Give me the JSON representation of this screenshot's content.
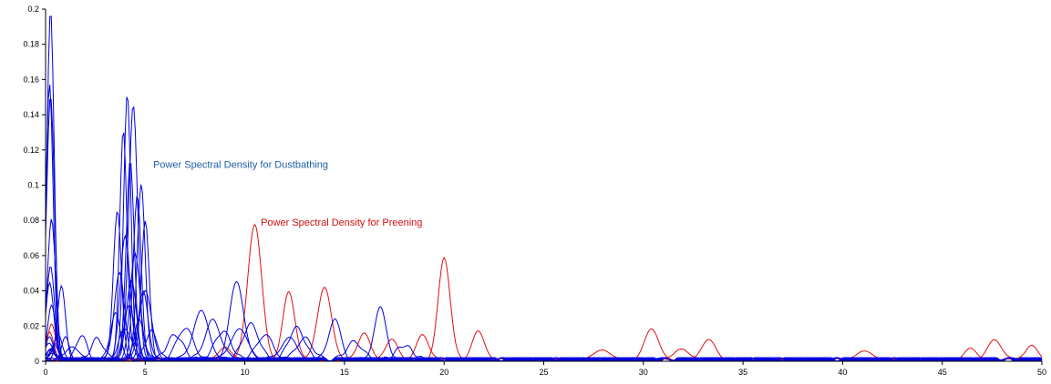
{
  "chart_data": {
    "type": "line",
    "title": "",
    "xlabel": "",
    "ylabel": "",
    "xlim": [
      0,
      50
    ],
    "ylim": [
      0,
      0.2
    ],
    "xticks": [
      0,
      5,
      10,
      15,
      20,
      25,
      30,
      35,
      40,
      45,
      50
    ],
    "xtick_labels": [
      "0",
      "5",
      "10",
      "15",
      "20",
      "25",
      "30",
      "35",
      "40",
      "45",
      "50"
    ],
    "yticks": [
      0,
      0.02,
      0.04,
      0.06,
      0.08,
      0.1,
      0.12,
      0.14,
      0.16,
      0.18,
      0.2
    ],
    "ytick_labels": [
      "0",
      "0.02",
      "0.04",
      "0.06",
      "0.08",
      "0.1",
      "0.12",
      "0.14",
      "0.16",
      "0.18",
      "0.2"
    ],
    "grid": false,
    "legend": "none",
    "annotations": [
      {
        "text": "Power Spectral Density for Dustbathing",
        "x": 5.4,
        "y": 0.112,
        "color": "#1f5fa8"
      },
      {
        "text": "Power Spectral Density for Preening",
        "x": 10.8,
        "y": 0.079,
        "color": "#d01010"
      }
    ],
    "series": [
      {
        "group": "dustbathing",
        "color": "#0000e0",
        "peaks": [
          [
            0.25,
            0.199,
            0.18
          ],
          [
            4.4,
            0.145,
            0.22
          ],
          [
            9.7,
            0.018,
            0.4
          ]
        ]
      },
      {
        "group": "dustbathing",
        "color": "#0000e0",
        "peaks": [
          [
            0.2,
            0.156,
            0.18
          ],
          [
            4.1,
            0.152,
            0.18
          ],
          [
            1.3,
            0.008,
            0.3
          ]
        ]
      },
      {
        "group": "dustbathing",
        "color": "#0000e0",
        "peaks": [
          [
            0.25,
            0.149,
            0.2
          ],
          [
            3.9,
            0.13,
            0.18
          ],
          [
            5.0,
            0.04,
            0.3
          ]
        ]
      },
      {
        "group": "dustbathing",
        "color": "#0000e0",
        "peaks": [
          [
            0.3,
            0.08,
            0.2
          ],
          [
            4.25,
            0.114,
            0.2
          ],
          [
            12.2,
            0.012,
            0.4
          ]
        ]
      },
      {
        "group": "dustbathing",
        "color": "#0000e0",
        "peaks": [
          [
            0.25,
            0.054,
            0.2
          ],
          [
            4.8,
            0.1,
            0.2
          ],
          [
            7.8,
            0.027,
            0.4
          ]
        ]
      },
      {
        "group": "dustbathing",
        "color": "#0000e0",
        "peaks": [
          [
            0.8,
            0.041,
            0.2
          ],
          [
            3.6,
            0.085,
            0.2
          ],
          [
            9.6,
            0.044,
            0.35
          ]
        ]
      },
      {
        "group": "dustbathing",
        "color": "#0000e0",
        "peaks": [
          [
            0.2,
            0.044,
            0.2
          ],
          [
            4.6,
            0.092,
            0.2
          ],
          [
            16.8,
            0.029,
            0.3
          ]
        ]
      },
      {
        "group": "dustbathing",
        "color": "#0000e0",
        "peaks": [
          [
            0.3,
            0.03,
            0.2
          ],
          [
            5.0,
            0.078,
            0.2
          ],
          [
            14.5,
            0.023,
            0.3
          ]
        ]
      },
      {
        "group": "dustbathing",
        "color": "#0000e0",
        "peaks": [
          [
            0.2,
            0.012,
            0.2
          ],
          [
            4.0,
            0.07,
            0.25
          ],
          [
            8.4,
            0.022,
            0.4
          ]
        ]
      },
      {
        "group": "dustbathing",
        "color": "#0000e0",
        "peaks": [
          [
            0.6,
            0.015,
            0.2
          ],
          [
            4.5,
            0.06,
            0.25
          ],
          [
            11.0,
            0.014,
            0.4
          ]
        ]
      },
      {
        "group": "dustbathing",
        "color": "#0000e0",
        "peaks": [
          [
            0.2,
            0.01,
            0.2
          ],
          [
            3.7,
            0.05,
            0.25
          ],
          [
            7.0,
            0.018,
            0.4
          ]
        ]
      },
      {
        "group": "dustbathing",
        "color": "#0000e0",
        "peaks": [
          [
            0.4,
            0.008,
            0.2
          ],
          [
            4.3,
            0.045,
            0.25
          ],
          [
            13.0,
            0.012,
            0.4
          ]
        ]
      },
      {
        "group": "dustbathing",
        "color": "#0000e0",
        "peaks": [
          [
            0.2,
            0.006,
            0.2
          ],
          [
            4.9,
            0.038,
            0.25
          ],
          [
            15.5,
            0.01,
            0.4
          ]
        ]
      },
      {
        "group": "dustbathing",
        "color": "#0000e0",
        "peaks": [
          [
            1.0,
            0.012,
            0.2
          ],
          [
            4.2,
            0.032,
            0.25
          ],
          [
            10.3,
            0.02,
            0.4
          ]
        ]
      },
      {
        "group": "dustbathing",
        "color": "#0000e0",
        "peaks": [
          [
            0.3,
            0.005,
            0.2
          ],
          [
            3.5,
            0.026,
            0.25
          ],
          [
            8.9,
            0.016,
            0.4
          ]
        ]
      },
      {
        "group": "dustbathing",
        "color": "#0000e0",
        "peaks": [
          [
            1.8,
            0.014,
            0.25
          ],
          [
            4.7,
            0.022,
            0.25
          ],
          [
            12.6,
            0.018,
            0.4
          ]
        ]
      },
      {
        "group": "dustbathing",
        "color": "#0000e0",
        "peaks": [
          [
            2.6,
            0.012,
            0.3
          ],
          [
            4.0,
            0.018,
            0.3
          ],
          [
            6.5,
            0.014,
            0.4
          ]
        ]
      },
      {
        "group": "dustbathing",
        "color": "#0000e0",
        "peaks": [
          [
            0.2,
            0.004,
            0.2
          ],
          [
            5.3,
            0.016,
            0.3
          ],
          [
            18.0,
            0.008,
            0.4
          ]
        ]
      },
      {
        "group": "preening",
        "color": "#e01010",
        "peaks": [
          [
            10.5,
            0.077,
            0.35
          ],
          [
            14.0,
            0.042,
            0.35
          ],
          [
            30.4,
            0.017,
            0.35
          ],
          [
            0.3,
            0.02,
            0.2
          ]
        ]
      },
      {
        "group": "preening",
        "color": "#e01010",
        "peaks": [
          [
            20.0,
            0.058,
            0.3
          ],
          [
            12.2,
            0.039,
            0.3
          ],
          [
            47.6,
            0.012,
            0.35
          ],
          [
            0.2,
            0.015,
            0.2
          ]
        ]
      },
      {
        "group": "preening",
        "color": "#e01010",
        "peaks": [
          [
            21.7,
            0.016,
            0.3
          ],
          [
            33.3,
            0.011,
            0.35
          ],
          [
            49.5,
            0.009,
            0.3
          ],
          [
            18.9,
            0.015,
            0.3
          ]
        ]
      },
      {
        "group": "preening",
        "color": "#e01010",
        "peaks": [
          [
            16.0,
            0.016,
            0.3
          ],
          [
            31.9,
            0.007,
            0.35
          ],
          [
            46.4,
            0.006,
            0.3
          ],
          [
            0.5,
            0.01,
            0.2
          ]
        ]
      },
      {
        "group": "preening",
        "color": "#e01010",
        "peaks": [
          [
            17.4,
            0.012,
            0.3
          ],
          [
            28.0,
            0.006,
            0.4
          ],
          [
            41.0,
            0.005,
            0.4
          ],
          [
            9.0,
            0.008,
            0.3
          ]
        ]
      }
    ]
  }
}
